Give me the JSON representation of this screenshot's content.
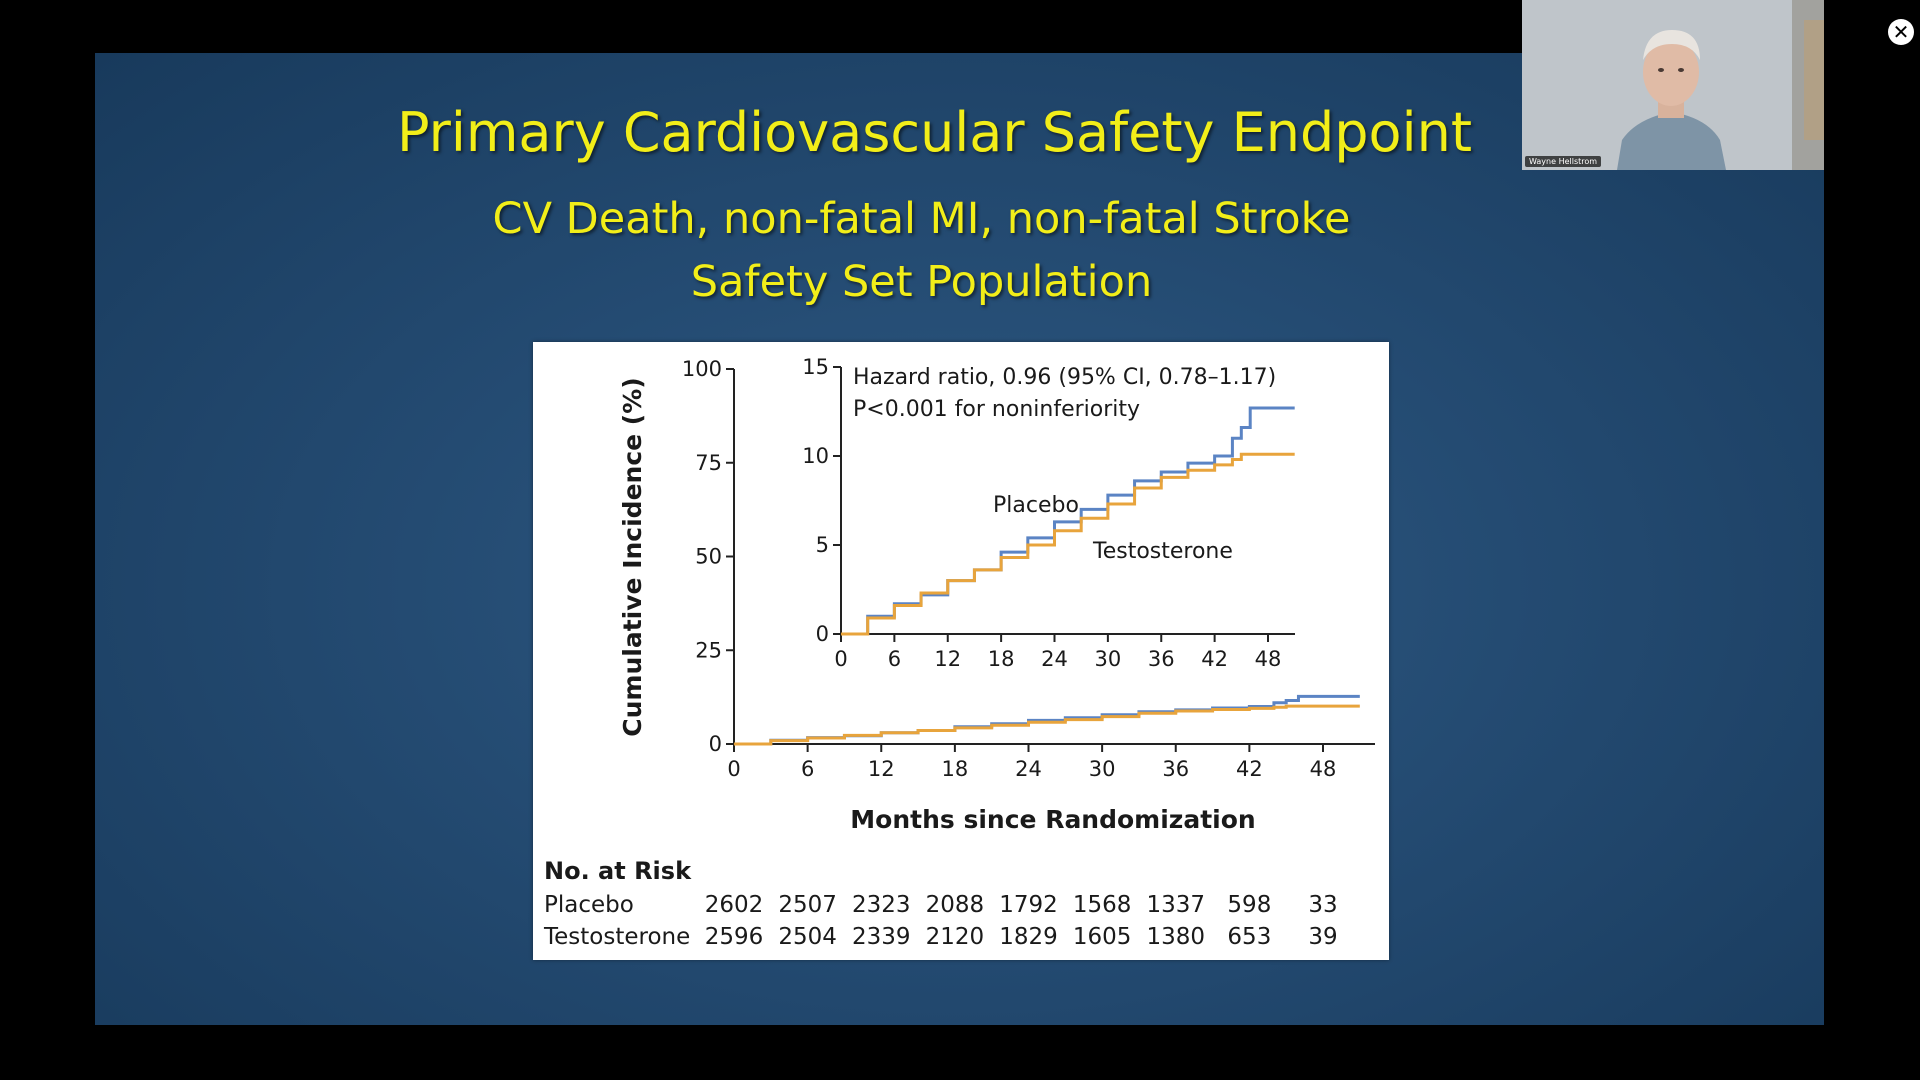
{
  "slide": {
    "title": "Primary Cardiovascular Safety Endpoint",
    "subtitle_line1": "CV Death, non-fatal MI, non-fatal Stroke",
    "subtitle_line2": "Safety Set Population",
    "text_color": "#f2ee19",
    "background_color": "#244b72"
  },
  "video_tile": {
    "participant_name": "Wayne Hellstrom"
  },
  "close_icon": "close-icon",
  "chart_data": [
    {
      "type": "line",
      "ylabel": "Cumulative Incidence (%)",
      "xlabel": "Months since Randomization",
      "xlim": [
        0,
        48
      ],
      "ylim": [
        0,
        100
      ],
      "x_ticks": [
        "0",
        "6",
        "12",
        "18",
        "24",
        "30",
        "36",
        "42",
        "48"
      ],
      "y_ticks": [
        "0",
        "25",
        "50",
        "75",
        "100"
      ],
      "series": [
        {
          "name": "Placebo",
          "color": "#5b84c4",
          "x": [
            0,
            3,
            6,
            9,
            12,
            15,
            18,
            21,
            24,
            27,
            30,
            33,
            36,
            39,
            42,
            44,
            45,
            46,
            51
          ],
          "y": [
            0,
            1.0,
            1.7,
            2.2,
            3.0,
            3.6,
            4.6,
            5.4,
            6.3,
            7.0,
            7.8,
            8.6,
            9.1,
            9.6,
            10.0,
            11.0,
            11.6,
            12.7,
            12.7
          ]
        },
        {
          "name": "Testosterone",
          "color": "#e8a43c",
          "x": [
            0,
            3,
            6,
            9,
            12,
            15,
            18,
            21,
            24,
            27,
            30,
            33,
            36,
            39,
            42,
            44,
            45,
            46,
            51
          ],
          "y": [
            0,
            0.9,
            1.6,
            2.3,
            3.0,
            3.6,
            4.3,
            5.0,
            5.8,
            6.5,
            7.3,
            8.2,
            8.8,
            9.2,
            9.5,
            9.8,
            10.1,
            10.1,
            10.1
          ]
        }
      ],
      "risk_table": {
        "heading": "No. at Risk",
        "rows": [
          {
            "label": "Placebo",
            "values": [
              "2602",
              "2507",
              "2323",
              "2088",
              "1792",
              "1568",
              "1337",
              "598",
              "33"
            ]
          },
          {
            "label": "Testosterone",
            "values": [
              "2596",
              "2504",
              "2339",
              "2120",
              "1829",
              "1605",
              "1380",
              "653",
              "39"
            ]
          }
        ]
      }
    },
    {
      "type": "line",
      "annotation_line1": "Hazard ratio, 0.96 (95% CI, 0.78–1.17)",
      "annotation_line2": "P<0.001 for noninferiority",
      "xlim": [
        0,
        48
      ],
      "ylim": [
        0,
        15
      ],
      "x_ticks": [
        "0",
        "6",
        "12",
        "18",
        "24",
        "30",
        "36",
        "42",
        "48"
      ],
      "y_ticks": [
        "0",
        "5",
        "10",
        "15"
      ],
      "series": [
        {
          "name": "Placebo",
          "color": "#5b84c4",
          "x": [
            0,
            3,
            6,
            9,
            12,
            15,
            18,
            21,
            24,
            27,
            30,
            33,
            36,
            39,
            42,
            44,
            45,
            46,
            51
          ],
          "y": [
            0,
            1.0,
            1.7,
            2.2,
            3.0,
            3.6,
            4.6,
            5.4,
            6.3,
            7.0,
            7.8,
            8.6,
            9.1,
            9.6,
            10.0,
            11.0,
            11.6,
            12.7,
            12.7
          ]
        },
        {
          "name": "Testosterone",
          "color": "#e8a43c",
          "x": [
            0,
            3,
            6,
            9,
            12,
            15,
            18,
            21,
            24,
            27,
            30,
            33,
            36,
            39,
            42,
            44,
            45,
            46,
            51
          ],
          "y": [
            0,
            0.9,
            1.6,
            2.3,
            3.0,
            3.6,
            4.3,
            5.0,
            5.8,
            6.5,
            7.3,
            8.2,
            8.8,
            9.2,
            9.5,
            9.8,
            10.1,
            10.1,
            10.1
          ]
        }
      ]
    }
  ]
}
